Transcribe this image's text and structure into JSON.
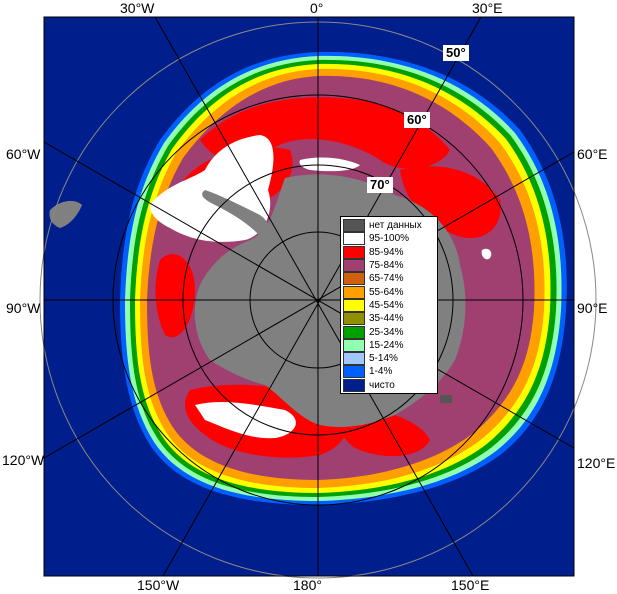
{
  "map": {
    "colors": {
      "ocean": "#001E8C",
      "land": "#808080",
      "no_data": "#555555",
      "ice_95_100": "#FFFFFF",
      "ice_85_94": "#FF0000",
      "ice_75_84": "#A04070",
      "ice_65_74": "#D06010",
      "ice_55_64": "#FFA000",
      "ice_45_54": "#FFFF00",
      "ice_35_44": "#909000",
      "ice_25_34": "#00A000",
      "ice_15_24": "#90FFB0",
      "ice_5_14": "#A0C8FF",
      "ice_1_4": "#0060FF"
    },
    "longitude_labels": [
      {
        "id": "30w",
        "text": "30°W"
      },
      {
        "id": "0",
        "text": "0°"
      },
      {
        "id": "30e",
        "text": "30°E"
      },
      {
        "id": "60w",
        "text": "60°W"
      },
      {
        "id": "60e",
        "text": "60°E"
      },
      {
        "id": "90w",
        "text": "90°W"
      },
      {
        "id": "90e",
        "text": "90°E"
      },
      {
        "id": "120w",
        "text": "120°W"
      },
      {
        "id": "120e",
        "text": "120°E"
      },
      {
        "id": "150w",
        "text": "150°W"
      },
      {
        "id": "180",
        "text": "180°"
      },
      {
        "id": "150e",
        "text": "150°E"
      }
    ],
    "latitude_labels": [
      {
        "id": "50",
        "text": "50°"
      },
      {
        "id": "60",
        "text": "60°"
      },
      {
        "id": "70",
        "text": "70°"
      }
    ]
  },
  "legend": {
    "items": [
      {
        "label": "нет данных",
        "color": "#555555"
      },
      {
        "label": "95-100%",
        "color": "#FFFFFF"
      },
      {
        "label": "85-94%",
        "color": "#FF0000"
      },
      {
        "label": "75-84%",
        "color": "#A04070"
      },
      {
        "label": "65-74%",
        "color": "#D06010"
      },
      {
        "label": "55-64%",
        "color": "#FFA000"
      },
      {
        "label": "45-54%",
        "color": "#FFFF00"
      },
      {
        "label": "35-44%",
        "color": "#909000"
      },
      {
        "label": "25-34%",
        "color": "#00A000"
      },
      {
        "label": "15-24%",
        "color": "#90FFB0"
      },
      {
        "label": "5-14%",
        "color": "#A0C8FF"
      },
      {
        "label": "1-4%",
        "color": "#0060FF"
      },
      {
        "label": "чисто",
        "color": "#001E8C"
      }
    ]
  }
}
